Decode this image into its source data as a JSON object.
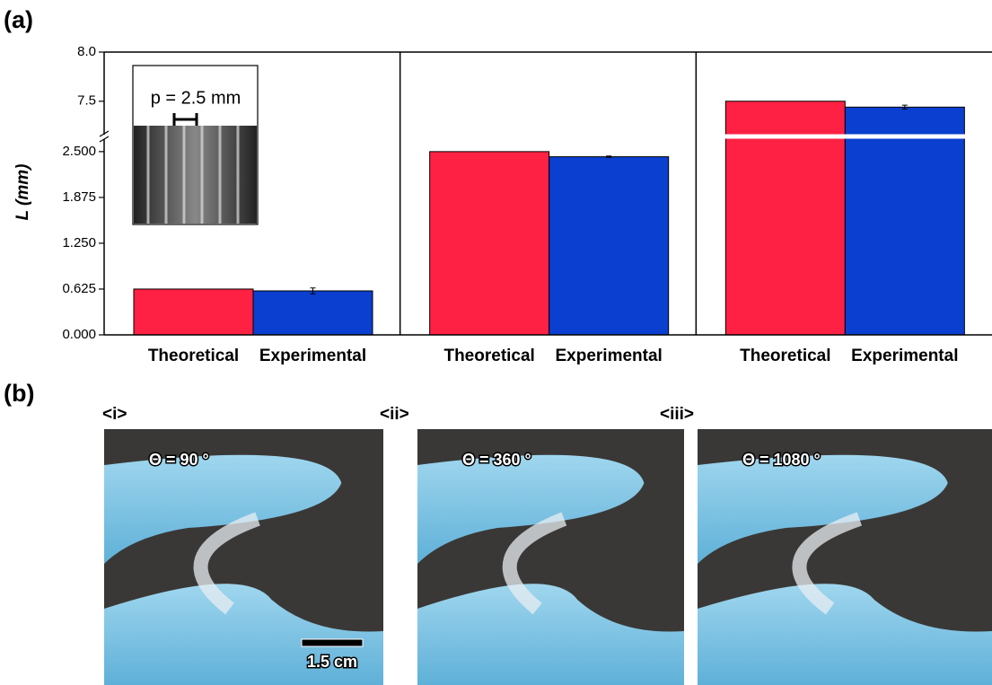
{
  "chart_data": {
    "type": "bar",
    "panel_label": "(a)",
    "y_label": "L (mm)",
    "colors": [
      "#ff2143",
      "#0a3fd0"
    ],
    "y_segments": [
      {
        "ylim": [
          0,
          2.67
        ],
        "yticks": [
          {
            "value": 0,
            "label": "0.000"
          },
          0.625,
          {
            "value": 1.25,
            "label": "1.250"
          },
          1.875,
          {
            "value": 2.5,
            "label": "2.500"
          }
        ]
      },
      {
        "ylim": [
          7.16,
          8.0
        ],
        "yticks": [
          7.5,
          {
            "value": 8,
            "label": "8.0"
          }
        ]
      }
    ],
    "inset_label": "p = 2.5 mm",
    "panels": [
      {
        "categories": [
          "Theoretical",
          "Experimental"
        ],
        "values": [
          0.625,
          0.6
        ],
        "experimental_error": 0.04
      },
      {
        "categories": [
          "Theoretical",
          "Experimental"
        ],
        "values": [
          2.5,
          2.43
        ],
        "experimental_error": 0.01
      },
      {
        "categories": [
          "Theoretical",
          "Experimental"
        ],
        "values": [
          7.5,
          7.44
        ],
        "experimental_error": 0.02
      }
    ]
  },
  "photos": {
    "panel_label": "(b)",
    "scale_bar": "1.5 cm",
    "items": [
      {
        "label": "<i>",
        "angle": "Θ = 90 °"
      },
      {
        "label": "<ii>",
        "angle": "Θ = 360 °"
      },
      {
        "label": "<iii>",
        "angle": "Θ = 1080 °"
      }
    ]
  }
}
